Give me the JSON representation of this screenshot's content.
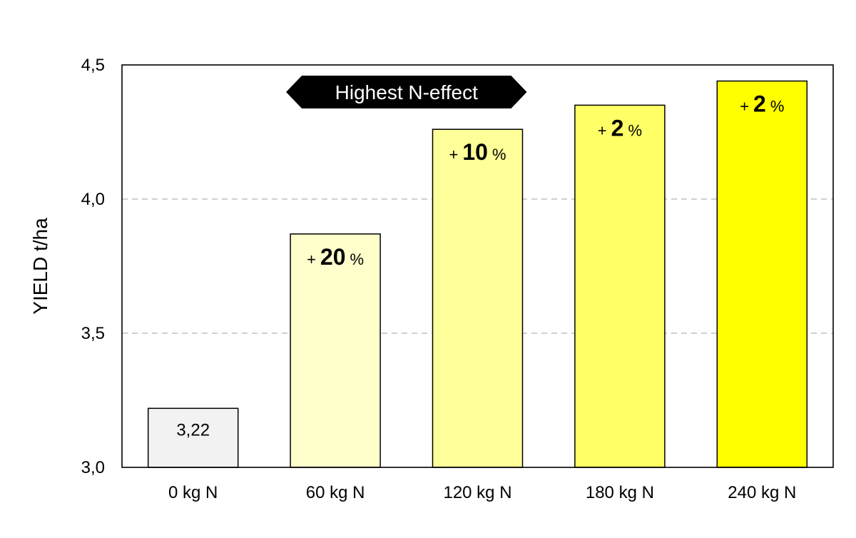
{
  "chart_data": {
    "type": "bar",
    "categories": [
      "0 kg N",
      "60 kg N",
      "120 kg N",
      "180 kg N",
      "240 kg N"
    ],
    "values": [
      3.22,
      3.87,
      4.26,
      4.35,
      4.44
    ],
    "ylabel": "YIELD t/ha",
    "ylim": [
      3.0,
      4.5
    ],
    "yticks": [
      "3,0",
      "3,5",
      "4,0",
      "4,5"
    ],
    "ytick_values": [
      3.0,
      3.5,
      4.0,
      4.5
    ],
    "grid": "horizontal dashed",
    "bar_colors": [
      "#f2f2f2",
      "#ffffcc",
      "#ffff99",
      "#ffff66",
      "#ffff00"
    ],
    "bar_labels": [
      {
        "type": "value",
        "text": "3,22"
      },
      {
        "type": "increase",
        "prefix": "+",
        "number": "20",
        "suffix": "%"
      },
      {
        "type": "increase",
        "prefix": "+",
        "number": "10",
        "suffix": "%"
      },
      {
        "type": "increase",
        "prefix": "+",
        "number": "2",
        "suffix": "%"
      },
      {
        "type": "increase",
        "prefix": "+",
        "number": "2",
        "suffix": "%"
      }
    ],
    "banner": {
      "text": "Highest N-effect",
      "color": "#000000",
      "spans": [
        "60 kg N",
        "120 kg N"
      ]
    }
  }
}
